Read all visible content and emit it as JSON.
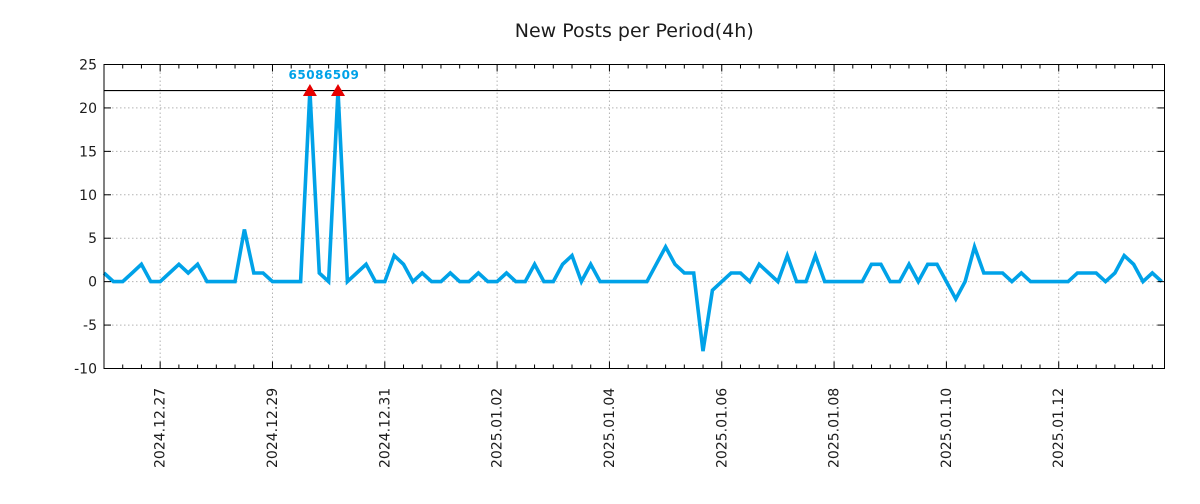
{
  "chart_data": {
    "type": "line",
    "title": "New Posts per Period(4h)",
    "x_tick_labels": [
      "2024.12.27",
      "2024.12.29",
      "2024.12.31",
      "2025.01.02",
      "2025.01.04",
      "2025.01.06",
      "2025.01.08",
      "2025.01.10",
      "2025.01.12"
    ],
    "first_tick_point_index": 6,
    "points_per_major_tick": 12,
    "minor_tick_every_points": 2,
    "yticks": [
      -10,
      -5,
      0,
      5,
      10,
      15,
      20,
      25
    ],
    "ylim": [
      -10,
      25
    ],
    "grid": true,
    "legend_position": "none",
    "threshold_line_y": 22,
    "annotation": {
      "text": "65086509",
      "between_point_indices": [
        22,
        25
      ]
    },
    "markers": {
      "symbol": "triangle-up",
      "point_indices": [
        22,
        25
      ],
      "y": 22
    },
    "series": [
      {
        "name": "new-posts-per-4h",
        "values": [
          1,
          0,
          0,
          1,
          2,
          0,
          0,
          1,
          2,
          1,
          2,
          0,
          0,
          0,
          0,
          6,
          1,
          1,
          0,
          0,
          0,
          0,
          22,
          1,
          0,
          22,
          0,
          1,
          2,
          0,
          0,
          3,
          2,
          0,
          1,
          0,
          0,
          1,
          0,
          0,
          1,
          0,
          0,
          1,
          0,
          0,
          2,
          0,
          0,
          2,
          3,
          0,
          2,
          0,
          0,
          0,
          0,
          0,
          0,
          2,
          4,
          2,
          1,
          1,
          -8,
          -1,
          0,
          1,
          1,
          0,
          2,
          1,
          0,
          3,
          0,
          0,
          3,
          0,
          0,
          0,
          0,
          0,
          2,
          2,
          0,
          0,
          2,
          0,
          2,
          2,
          0,
          -2,
          0,
          4,
          1,
          1,
          1,
          0,
          1,
          0,
          0,
          0,
          0,
          0,
          1,
          1,
          1,
          0,
          1,
          3,
          2,
          0,
          1,
          0
        ]
      }
    ]
  },
  "colors": {
    "line": "#00a2e8",
    "marker": "#e60000",
    "annotation": "#00a2e8",
    "threshold_line": "#000000",
    "grid": "#b3b3b3",
    "axis": "#000000",
    "text": "#1c1c1c",
    "background": "#ffffff"
  }
}
